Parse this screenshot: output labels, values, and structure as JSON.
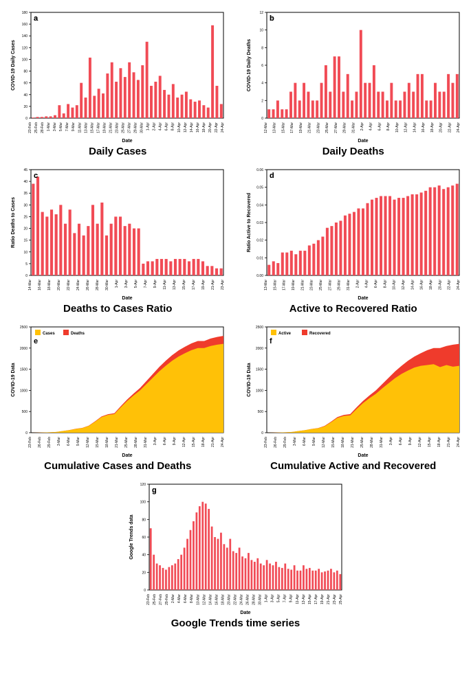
{
  "constants": {
    "bar_color": "#f14b55",
    "bg_color": "#ffffff",
    "axis_color": "#000000",
    "grid_color": "#dcdcdc",
    "area_color_1": "#ffc107",
    "area_color_2": "#ef3b2c",
    "label_fontsize": 7,
    "tick_fontsize": 5,
    "letter_fontsize": 11
  },
  "charts": {
    "a": {
      "type": "bar",
      "letter": "a",
      "ylabel": "COVID-19 Daily Cases",
      "xlabel": "Date",
      "title": "Daily Cases",
      "ylim": [
        0,
        180
      ],
      "ytick_step": 20,
      "categories": [
        "23-Feb",
        "25-Feb",
        "28-Feb",
        "1-Mar",
        "3-Mar",
        "5-Mar",
        "7-Mar",
        "9-Mar",
        "11-Mar",
        "13-Mar",
        "15-Mar",
        "17-Mar",
        "19-Mar",
        "21-Mar",
        "23-Mar",
        "25-Mar",
        "27-Mar",
        "29-Mar",
        "30-Mar",
        "1-Apr",
        "2-Apr",
        "4-Apr",
        "6-Apr",
        "8-Apr",
        "10-Apr",
        "12-Apr",
        "14-Apr",
        "16-Apr",
        "18-Apr",
        "20-Apr",
        "22-Apr",
        "24-Apr"
      ],
      "values": [
        1,
        2,
        2,
        3,
        3,
        5,
        22,
        8,
        24,
        18,
        22,
        60,
        35,
        103,
        38,
        50,
        42,
        76,
        95,
        62,
        85,
        70,
        95,
        78,
        65,
        90,
        130,
        55,
        62,
        72,
        48,
        40,
        58,
        35,
        40,
        45,
        32,
        28,
        30,
        22,
        18,
        158,
        55,
        24
      ]
    },
    "b": {
      "type": "bar",
      "letter": "b",
      "ylabel": "COVID-19 Daily Deaths",
      "xlabel": "Date",
      "title": "Daily Deaths",
      "ylim": [
        0,
        12
      ],
      "ytick_step": 2,
      "categories": [
        "12-Mar",
        "13-Mar",
        "15-Mar",
        "17-Mar",
        "19-Mar",
        "21-Mar",
        "23-Mar",
        "25-Mar",
        "27-Mar",
        "29-Mar",
        "31-Mar",
        "2-Apr",
        "4-Apr",
        "6-Apr",
        "8-Apr",
        "10-Apr",
        "12-Apr",
        "14-Apr",
        "16-Apr",
        "18-Apr",
        "20-Apr",
        "22-Apr",
        "24-Apr"
      ],
      "values": [
        1,
        1,
        2,
        1,
        1,
        3,
        4,
        2,
        4,
        3,
        2,
        2,
        4,
        6,
        3,
        7,
        7,
        3,
        5,
        2,
        3,
        10,
        4,
        4,
        6,
        3,
        3,
        2,
        4,
        2,
        2,
        3,
        4,
        3,
        5,
        5,
        2,
        2,
        4,
        3,
        3,
        5,
        4,
        5
      ]
    },
    "c": {
      "type": "bar",
      "letter": "c",
      "ylabel": "Ratio Deaths to Cases",
      "xlabel": "Date",
      "title": "Deaths to Cases Ratio",
      "ylim": [
        0,
        45
      ],
      "ytick_step": 5,
      "categories": [
        "14-Mar",
        "16-Mar",
        "18-Mar",
        "20-Mar",
        "22-Mar",
        "24-Mar",
        "26-Mar",
        "28-Mar",
        "30-Mar",
        "1-Apr",
        "3-Apr",
        "5-Apr",
        "7-Apr",
        "9-Apr",
        "11-Apr",
        "13-Apr",
        "15-Apr",
        "17-Apr",
        "19-Apr",
        "21-Apr",
        "23-Apr"
      ],
      "values": [
        39,
        42,
        27,
        25,
        28,
        26,
        30,
        22,
        28,
        18,
        22,
        17,
        21,
        30,
        22,
        31,
        17,
        22,
        25,
        25,
        21,
        22,
        20,
        20,
        5,
        6,
        6,
        7,
        7,
        7,
        6,
        7,
        7,
        7,
        6,
        7,
        7,
        6,
        4,
        4,
        3,
        3
      ]
    },
    "d": {
      "type": "bar",
      "letter": "d",
      "ylabel": "Ratio Active to Recovered",
      "xlabel": "Date",
      "title": "Active to Recovered Ratio",
      "ylim": [
        0,
        0.06
      ],
      "ytick_step": 0.01,
      "categories": [
        "13-Mar",
        "15-Mar",
        "17-Mar",
        "19-Mar",
        "21-Mar",
        "23-Mar",
        "25-Mar",
        "27-Mar",
        "29-Mar",
        "31-Mar",
        "2-Apr",
        "4-Apr",
        "6-Apr",
        "8-Apr",
        "10-Apr",
        "12-Apr",
        "14-Apr",
        "16-Apr",
        "18-Apr",
        "20-Apr",
        "22-Apr",
        "24-Apr"
      ],
      "values": [
        0.006,
        0.008,
        0.007,
        0.013,
        0.013,
        0.014,
        0.012,
        0.014,
        0.014,
        0.017,
        0.018,
        0.02,
        0.022,
        0.027,
        0.028,
        0.03,
        0.031,
        0.034,
        0.035,
        0.036,
        0.038,
        0.038,
        0.041,
        0.043,
        0.044,
        0.045,
        0.045,
        0.045,
        0.043,
        0.044,
        0.044,
        0.045,
        0.046,
        0.046,
        0.047,
        0.048,
        0.05,
        0.05,
        0.051,
        0.049,
        0.05,
        0.051,
        0.052
      ]
    },
    "e": {
      "type": "area",
      "letter": "e",
      "ylabel": "COVID-19 Data",
      "xlabel": "Date",
      "title": "Cumulative Cases and Deaths",
      "ylim": [
        0,
        2500
      ],
      "ytick_step": 500,
      "legend": [
        {
          "label": "Cases",
          "color": "#ffc107"
        },
        {
          "label": "Deaths",
          "color": "#ef3b2c"
        }
      ],
      "categories": [
        "23-Feb",
        "26-Feb",
        "29-Feb",
        "3-Mar",
        "6-Mar",
        "9-Mar",
        "12-Mar",
        "15-Mar",
        "18-Mar",
        "21-Mar",
        "25-Mar",
        "28-Mar",
        "31-Mar",
        "3-Apr",
        "6-Apr",
        "9-Apr",
        "12-Apr",
        "15-Apr",
        "18-Apr",
        "21-Apr",
        "24-Apr"
      ],
      "series": [
        {
          "name": "Cases",
          "color": "#ffc107",
          "values": [
            1,
            3,
            6,
            10,
            18,
            40,
            60,
            90,
            110,
            160,
            260,
            370,
            420,
            440,
            600,
            750,
            880,
            1000,
            1150,
            1300,
            1450,
            1580,
            1700,
            1800,
            1880,
            1950,
            2000,
            2000,
            2050,
            2080,
            2100
          ]
        },
        {
          "name": "Deaths",
          "color": "#ef3b2c",
          "values": [
            0,
            0,
            0,
            0,
            0,
            1,
            2,
            3,
            4,
            6,
            9,
            13,
            17,
            20,
            28,
            36,
            46,
            58,
            72,
            88,
            104,
            120,
            132,
            144,
            152,
            160,
            168,
            168,
            176,
            182,
            188
          ]
        }
      ]
    },
    "f": {
      "type": "area",
      "letter": "f",
      "ylabel": "COVID-19 Data",
      "xlabel": "Date",
      "title": "Cumulative Active and Recovered",
      "ylim": [
        0,
        2500
      ],
      "ytick_step": 500,
      "legend": [
        {
          "label": "Active",
          "color": "#ffc107"
        },
        {
          "label": "Recovered",
          "color": "#ef3b2c"
        }
      ],
      "categories": [
        "23-Feb",
        "26-Feb",
        "29-Feb",
        "3-Mar",
        "6-Mar",
        "9-Mar",
        "12-Mar",
        "15-Mar",
        "18-Mar",
        "21-Mar",
        "25-Mar",
        "28-Mar",
        "31-Mar",
        "3-Apr",
        "6-Apr",
        "9-Apr",
        "12-Apr",
        "15-Apr",
        "18-Apr",
        "21-Apr",
        "24-Apr"
      ],
      "series": [
        {
          "name": "Active",
          "color": "#ffc107",
          "values": [
            1,
            3,
            6,
            10,
            18,
            40,
            60,
            88,
            106,
            150,
            245,
            350,
            395,
            410,
            560,
            700,
            815,
            920,
            1050,
            1170,
            1290,
            1390,
            1470,
            1540,
            1580,
            1600,
            1620,
            1550,
            1600,
            1560,
            1580
          ]
        },
        {
          "name": "Recovered",
          "color": "#ef3b2c",
          "values": [
            0,
            0,
            0,
            0,
            0,
            0,
            0,
            2,
            4,
            10,
            15,
            20,
            25,
            30,
            40,
            50,
            65,
            80,
            100,
            130,
            160,
            190,
            230,
            260,
            300,
            350,
            380,
            450,
            450,
            520,
            520
          ]
        }
      ]
    },
    "g": {
      "type": "bar",
      "letter": "g",
      "ylabel": "Google Trends data",
      "xlabel": "Date",
      "title": "Google Trends time series",
      "ylim": [
        0,
        120
      ],
      "ytick_step": 20,
      "categories": [
        "23-Feb",
        "25-Feb",
        "27-Feb",
        "29-Feb",
        "2-Mar",
        "4-Mar",
        "6-Mar",
        "8-Mar",
        "10-Mar",
        "12-Mar",
        "14-Mar",
        "16-Mar",
        "18-Mar",
        "20-Mar",
        "22-Mar",
        "24-Mar",
        "26-Mar",
        "28-Mar",
        "30-Mar",
        "1-Apr",
        "3-Apr",
        "5-Apr",
        "7-Apr",
        "9-Apr",
        "11-Apr",
        "13-Apr",
        "15-Apr",
        "17-Apr",
        "19-Apr",
        "21-Apr",
        "23-Apr",
        "25-Apr"
      ],
      "values": [
        70,
        40,
        30,
        28,
        25,
        23,
        26,
        28,
        30,
        35,
        40,
        48,
        58,
        68,
        78,
        88,
        95,
        100,
        98,
        92,
        72,
        60,
        58,
        65,
        52,
        48,
        58,
        44,
        42,
        48,
        38,
        36,
        42,
        34,
        32,
        36,
        30,
        28,
        34,
        30,
        28,
        32,
        26,
        25,
        30,
        24,
        23,
        28,
        22,
        22,
        28,
        24,
        25,
        22,
        22,
        24,
        20,
        21,
        22,
        24,
        20,
        22,
        18
      ]
    }
  }
}
